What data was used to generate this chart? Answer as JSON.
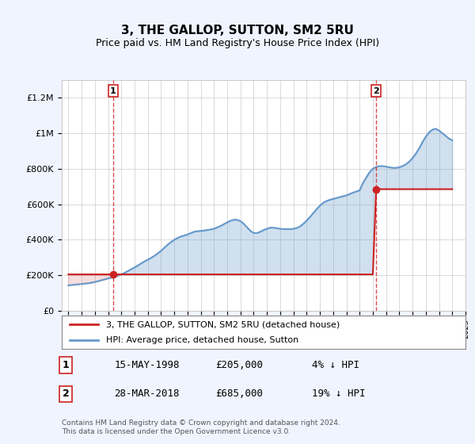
{
  "title": "3, THE GALLOP, SUTTON, SM2 5RU",
  "subtitle": "Price paid vs. HM Land Registry's House Price Index (HPI)",
  "hpi_color": "#6699cc",
  "price_color": "#cc2222",
  "background_color": "#f0f4ff",
  "plot_bg_color": "#ffffff",
  "ylim": [
    0,
    1300000
  ],
  "yticks": [
    0,
    200000,
    400000,
    600000,
    800000,
    1000000,
    1200000
  ],
  "ytick_labels": [
    "£0",
    "£200K",
    "£400K",
    "£600K",
    "£800K",
    "£1M",
    "£1.2M"
  ],
  "sale1_year": 1998.37,
  "sale1_price": 205000,
  "sale1_label": "1",
  "sale2_year": 2018.24,
  "sale2_price": 685000,
  "sale2_label": "2",
  "legend_line1": "3, THE GALLOP, SUTTON, SM2 5RU (detached house)",
  "legend_line2": "HPI: Average price, detached house, Sutton",
  "table_row1": [
    "1",
    "15-MAY-1998",
    "£205,000",
    "4% ↓ HPI"
  ],
  "table_row2": [
    "2",
    "28-MAR-2018",
    "£685,000",
    "19% ↓ HPI"
  ],
  "footer": "Contains HM Land Registry data © Crown copyright and database right 2024.\nThis data is licensed under the Open Government Licence v3.0.",
  "hpi_x": [
    1995,
    1995.25,
    1995.5,
    1995.75,
    1996,
    1996.25,
    1996.5,
    1996.75,
    1997,
    1997.25,
    1997.5,
    1997.75,
    1998,
    1998.25,
    1998.5,
    1998.75,
    1999,
    1999.25,
    1999.5,
    1999.75,
    2000,
    2000.25,
    2000.5,
    2000.75,
    2001,
    2001.25,
    2001.5,
    2001.75,
    2002,
    2002.25,
    2002.5,
    2002.75,
    2003,
    2003.25,
    2003.5,
    2003.75,
    2004,
    2004.25,
    2004.5,
    2004.75,
    2005,
    2005.25,
    2005.5,
    2005.75,
    2006,
    2006.25,
    2006.5,
    2006.75,
    2007,
    2007.25,
    2007.5,
    2007.75,
    2008,
    2008.25,
    2008.5,
    2008.75,
    2009,
    2009.25,
    2009.5,
    2009.75,
    2010,
    2010.25,
    2010.5,
    2010.75,
    2011,
    2011.25,
    2011.5,
    2011.75,
    2012,
    2012.25,
    2012.5,
    2012.75,
    2013,
    2013.25,
    2013.5,
    2013.75,
    2014,
    2014.25,
    2014.5,
    2014.75,
    2015,
    2015.25,
    2015.5,
    2015.75,
    2016,
    2016.25,
    2016.5,
    2016.75,
    2017,
    2017.25,
    2017.5,
    2017.75,
    2018,
    2018.25,
    2018.5,
    2018.75,
    2019,
    2019.25,
    2019.5,
    2019.75,
    2020,
    2020.25,
    2020.5,
    2020.75,
    2021,
    2021.25,
    2021.5,
    2021.75,
    2022,
    2022.25,
    2022.5,
    2022.75,
    2023,
    2023.25,
    2023.5,
    2023.75,
    2024
  ],
  "hpi_y": [
    143000,
    145000,
    147000,
    149000,
    151000,
    153000,
    155000,
    158000,
    162000,
    167000,
    172000,
    177000,
    182000,
    187000,
    192000,
    198000,
    205000,
    214000,
    224000,
    234000,
    244000,
    255000,
    267000,
    278000,
    288000,
    298000,
    310000,
    323000,
    338000,
    355000,
    372000,
    387000,
    400000,
    410000,
    418000,
    424000,
    430000,
    438000,
    445000,
    448000,
    450000,
    452000,
    455000,
    458000,
    462000,
    470000,
    478000,
    488000,
    498000,
    507000,
    513000,
    512000,
    505000,
    490000,
    470000,
    450000,
    438000,
    438000,
    445000,
    455000,
    462000,
    468000,
    468000,
    465000,
    462000,
    460000,
    460000,
    460000,
    462000,
    466000,
    475000,
    490000,
    508000,
    528000,
    550000,
    572000,
    592000,
    608000,
    618000,
    625000,
    630000,
    635000,
    640000,
    645000,
    650000,
    658000,
    665000,
    672000,
    678000,
    720000,
    750000,
    780000,
    800000,
    810000,
    815000,
    815000,
    812000,
    808000,
    805000,
    805000,
    808000,
    815000,
    825000,
    840000,
    860000,
    885000,
    915000,
    950000,
    980000,
    1005000,
    1020000,
    1025000,
    1015000,
    1000000,
    985000,
    970000,
    960000
  ],
  "price_x": [
    1995.0,
    1995.25,
    1995.5,
    1995.75,
    1996.0,
    1996.25,
    1996.5,
    1996.75,
    1997.0,
    1997.25,
    1997.5,
    1997.75,
    1998.0,
    1998.25,
    1998.5,
    1998.75,
    1999.0,
    1999.25,
    1999.5,
    1999.75,
    2000.0,
    2000.25,
    2000.5,
    2000.75,
    2001.0,
    2001.25,
    2001.5,
    2001.75,
    2002.0,
    2002.25,
    2002.5,
    2002.75,
    2003.0,
    2003.25,
    2003.5,
    2003.75,
    2004.0,
    2004.25,
    2004.5,
    2004.75,
    2005.0,
    2005.25,
    2005.5,
    2005.75,
    2006.0,
    2006.25,
    2006.5,
    2006.75,
    2007.0,
    2007.25,
    2007.5,
    2007.75,
    2008.0,
    2008.25,
    2008.5,
    2008.75,
    2009.0,
    2009.25,
    2009.5,
    2009.75,
    2010.0,
    2010.25,
    2010.5,
    2010.75,
    2011.0,
    2011.25,
    2011.5,
    2011.75,
    2012.0,
    2012.25,
    2012.5,
    2012.75,
    2013.0,
    2013.25,
    2013.5,
    2013.75,
    2014.0,
    2014.25,
    2014.5,
    2014.75,
    2015.0,
    2015.25,
    2015.5,
    2015.75,
    2016.0,
    2016.25,
    2016.5,
    2016.75,
    2017.0,
    2017.25,
    2017.5,
    2017.75,
    2018.0,
    2018.25,
    2018.5,
    2018.75,
    2019.0,
    2019.25,
    2019.5,
    2019.75,
    2020.0,
    2020.25,
    2020.5,
    2020.75,
    2021.0,
    2021.25,
    2021.5,
    2021.75,
    2022.0,
    2022.25,
    2022.5,
    2022.75,
    2023.0,
    2023.25,
    2023.5,
    2023.75,
    2024.0
  ],
  "price_y": [
    205000,
    205000,
    205000,
    205000,
    205000,
    205000,
    205000,
    205000,
    205000,
    205000,
    205000,
    205000,
    205000,
    205000,
    205000,
    205000,
    205000,
    205000,
    205000,
    205000,
    205000,
    205000,
    205000,
    205000,
    205000,
    205000,
    205000,
    205000,
    205000,
    205000,
    205000,
    205000,
    205000,
    205000,
    205000,
    205000,
    205000,
    205000,
    205000,
    205000,
    205000,
    205000,
    205000,
    205000,
    205000,
    205000,
    205000,
    205000,
    205000,
    205000,
    205000,
    205000,
    205000,
    205000,
    205000,
    205000,
    205000,
    205000,
    205000,
    205000,
    205000,
    205000,
    205000,
    205000,
    205000,
    205000,
    205000,
    205000,
    205000,
    205000,
    205000,
    205000,
    205000,
    205000,
    205000,
    205000,
    205000,
    205000,
    205000,
    205000,
    205000,
    205000,
    205000,
    205000,
    205000,
    205000,
    205000,
    205000,
    205000,
    205000,
    205000,
    205000,
    205000,
    685000,
    685000,
    685000,
    685000,
    685000,
    685000,
    685000,
    685000,
    685000,
    685000,
    685000,
    685000,
    685000,
    685000,
    685000,
    685000,
    685000,
    685000,
    685000,
    685000,
    685000,
    685000,
    685000,
    685000
  ]
}
